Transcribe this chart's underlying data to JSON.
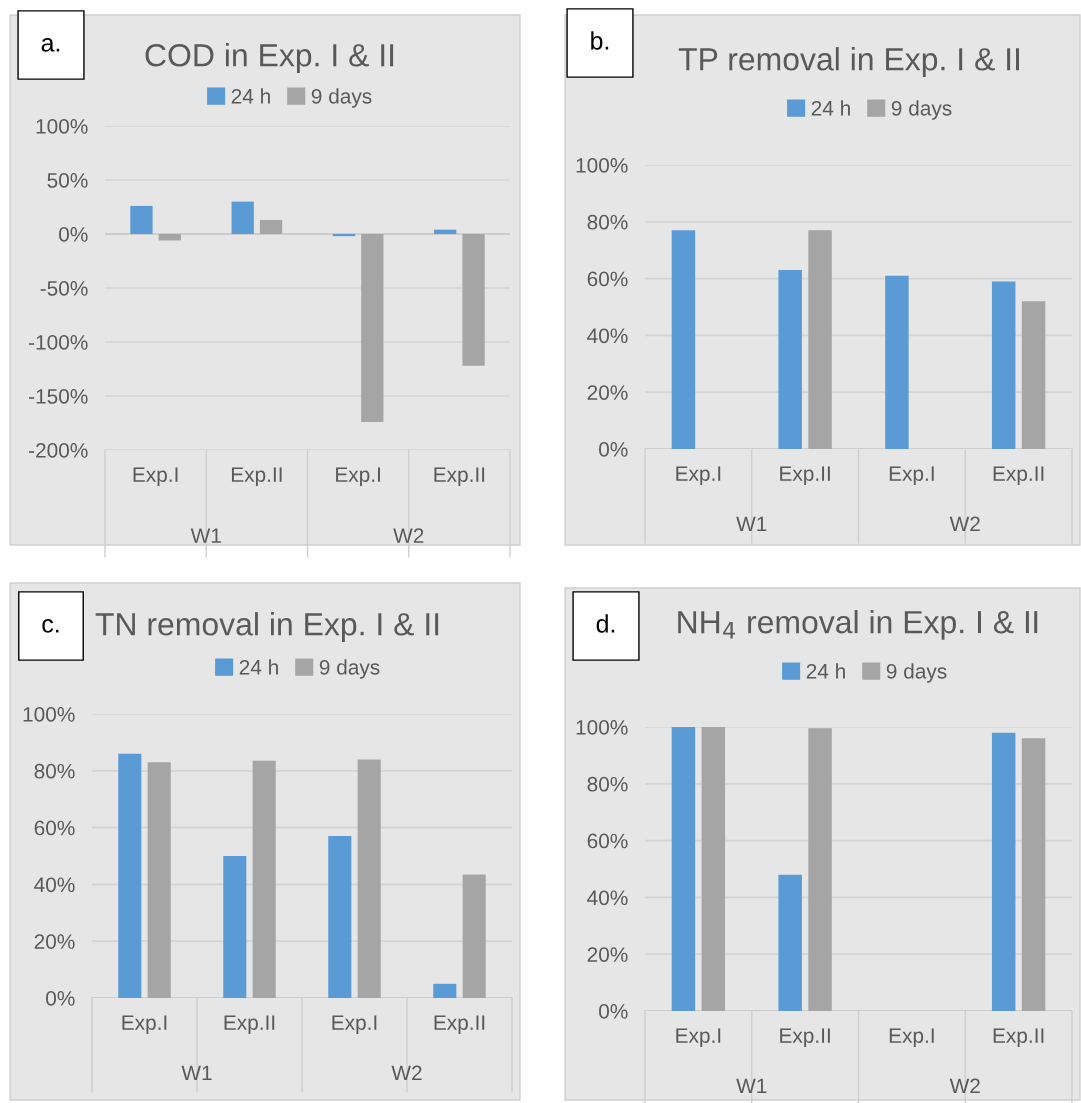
{
  "chart_data": [
    {
      "type": "bar",
      "title": "COD in Exp. I & II",
      "categories": [
        "Exp.I",
        "Exp.II",
        "Exp.I",
        "Exp.II"
      ],
      "series": [
        {
          "name": "24 h",
          "color": "#5b9bd5",
          "values": [
            26,
            30,
            -2,
            4
          ]
        },
        {
          "name": "9 days",
          "color": "#a5a5a5",
          "values": [
            -6,
            13,
            -174,
            -122
          ]
        }
      ],
      "ylim": [
        -200,
        100
      ],
      "yticks": [
        {
          "value": -200,
          "label": "-200%"
        },
        {
          "value": -150,
          "label": "-150%"
        },
        {
          "value": -100,
          "label": "-100%"
        },
        {
          "value": -50,
          "label": "-50%"
        },
        {
          "value": 0,
          "label": "0%"
        },
        {
          "value": 50,
          "label": "50%"
        },
        {
          "value": 100,
          "label": "100%"
        }
      ],
      "annotations": [
        "a.",
        "W1",
        "W2"
      ],
      "grid": "y",
      "legend": "top"
    },
    {
      "type": "bar",
      "title": "TP removal in Exp. I & II",
      "categories": [
        "Exp.I",
        "Exp.II",
        "Exp.I",
        "Exp.II"
      ],
      "series": [
        {
          "name": "24 h",
          "color": "#5b9bd5",
          "values": [
            77,
            63,
            61,
            59
          ]
        },
        {
          "name": "9 days",
          "color": "#a5a5a5",
          "values": [
            null,
            77,
            null,
            52
          ]
        }
      ],
      "ylim": [
        0,
        100
      ],
      "yticks": [
        {
          "value": 0,
          "label": "0%"
        },
        {
          "value": 20,
          "label": "20%"
        },
        {
          "value": 40,
          "label": "40%"
        },
        {
          "value": 60,
          "label": "60%"
        },
        {
          "value": 80,
          "label": "80%"
        },
        {
          "value": 100,
          "label": "100%"
        }
      ],
      "annotations": [
        "b.",
        "W1",
        "W2"
      ],
      "grid": "y",
      "legend": "top"
    },
    {
      "type": "bar",
      "title": "TN removal in Exp. I & II",
      "categories": [
        "Exp.I",
        "Exp.II",
        "Exp.I",
        "Exp.II"
      ],
      "series": [
        {
          "name": "24 h",
          "color": "#5b9bd5",
          "values": [
            86,
            50,
            57,
            5
          ]
        },
        {
          "name": "9 days",
          "color": "#a5a5a5",
          "values": [
            83,
            83.5,
            84,
            43.5
          ]
        }
      ],
      "ylim": [
        0,
        100
      ],
      "yticks": [
        {
          "value": 0,
          "label": "0%"
        },
        {
          "value": 20,
          "label": "20%"
        },
        {
          "value": 40,
          "label": "40%"
        },
        {
          "value": 60,
          "label": "60%"
        },
        {
          "value": 80,
          "label": "80%"
        },
        {
          "value": 100,
          "label": "100%"
        }
      ],
      "annotations": [
        "c.",
        "W1",
        "W2"
      ],
      "grid": "y",
      "legend": "top"
    },
    {
      "type": "bar",
      "title": "NH$_{4}$ removal in Exp. I & II",
      "categories": [
        "Exp.I",
        "Exp.II",
        "Exp.I",
        "Exp.II"
      ],
      "series": [
        {
          "name": "24 h",
          "color": "#5b9bd5",
          "values": [
            100,
            48,
            null,
            98
          ]
        },
        {
          "name": "9 days",
          "color": "#a5a5a5",
          "values": [
            100,
            99.6,
            null,
            96
          ]
        }
      ],
      "ylim": [
        0,
        100
      ],
      "yticks": [
        {
          "value": 0,
          "label": "0%"
        },
        {
          "value": 20,
          "label": "20%"
        },
        {
          "value": 40,
          "label": "40%"
        },
        {
          "value": 60,
          "label": "60%"
        },
        {
          "value": 80,
          "label": "80%"
        },
        {
          "value": 100,
          "label": "100%"
        }
      ],
      "annotations": [
        "d.",
        "W1",
        "W2"
      ],
      "grid": "y",
      "legend": "top"
    }
  ]
}
